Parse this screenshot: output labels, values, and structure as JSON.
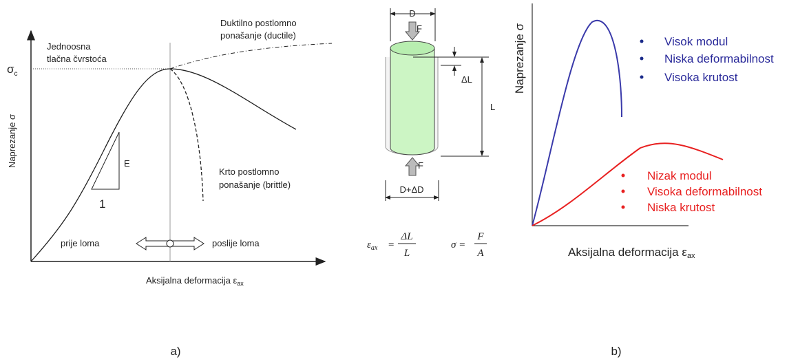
{
  "panel_a": {
    "sigma_symbol": "σ",
    "sigma_sub": "c",
    "strength_label": [
      "Jednoosna",
      "tlačna čvrstoća"
    ],
    "ductile_label": [
      "Duktilno postlomno",
      "ponašanje (ductile)"
    ],
    "brittle_label": [
      "Krto postlomno",
      "ponašanje (brittle)"
    ],
    "y_axis_label": "Naprezanje σ",
    "modulus": "E",
    "unit": "1",
    "before_failure": "prije loma",
    "after_failure": "poslije loma",
    "x_axis_label": "Aksijalna deformacija ε",
    "x_axis_sub": "ax",
    "caption": "a)"
  },
  "specimen": {
    "diameter": "D",
    "force_top": "F",
    "force_bottom": "F",
    "delta_length": "ΔL",
    "length": "L",
    "final_diameter": "D+ΔD",
    "strain_symbol": "ε",
    "strain_sub": "ax",
    "equals_1": "=",
    "strain_num": "ΔL",
    "strain_den": "L",
    "stress_lhs": "σ =",
    "stress_num": "F",
    "stress_den": "A"
  },
  "panel_b": {
    "y_axis_label": "Naprezanje σ",
    "x_axis_label": "Aksijalna deformacija ε",
    "x_axis_sub": "ax",
    "stiff_items": [
      "Visok modul",
      "Niska deformabilnost",
      "Visoka krutost"
    ],
    "soft_items": [
      "Nizak modul",
      "Visoka deformabilnost",
      "Niska krutost"
    ],
    "caption": "b)"
  }
}
